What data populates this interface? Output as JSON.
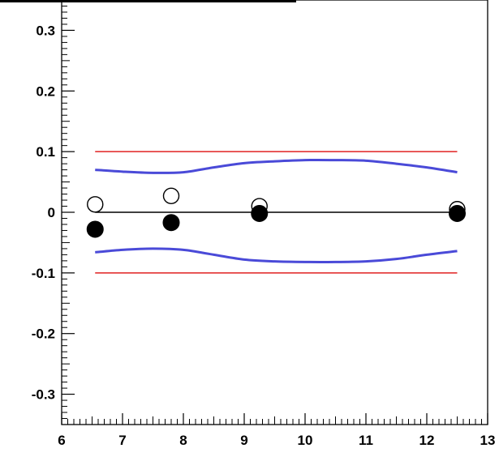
{
  "chart_data": {
    "type": "scatter",
    "title": "",
    "xlabel": "",
    "ylabel": "",
    "xlim": [
      6,
      13
    ],
    "ylim": [
      -0.35,
      0.35
    ],
    "grid": false,
    "x_ticks": [
      6,
      7,
      8,
      9,
      10,
      11,
      12,
      13
    ],
    "x_tick_labels": [
      "6",
      "7",
      "8",
      "9",
      "10",
      "11",
      "12",
      "13"
    ],
    "y_ticks": [
      0.3,
      0.2,
      0.1,
      0,
      -0.1,
      -0.2,
      -0.3
    ],
    "y_tick_labels": [
      "0.3",
      "0.2",
      "0.1",
      "0",
      "-0.1",
      "-0.2",
      "-0.3"
    ],
    "series": [
      {
        "marker": "open-circle",
        "color": "#000000",
        "x": [
          6.55,
          7.8,
          9.25,
          12.5
        ],
        "y": [
          0.013,
          0.027,
          0.01,
          0.005
        ]
      },
      {
        "marker": "filled-circle",
        "color": "#000000",
        "x": [
          6.55,
          7.8,
          9.25,
          12.5
        ],
        "y": [
          -0.028,
          -0.017,
          -0.002,
          -0.002
        ]
      },
      {
        "style": "line",
        "color": "#000000",
        "x": [
          6.55,
          12.5
        ],
        "y": [
          0,
          0
        ]
      },
      {
        "style": "line",
        "color": "#e02020",
        "x": [
          6.55,
          12.5
        ],
        "y": [
          0.1,
          0.1
        ]
      },
      {
        "style": "line",
        "color": "#e02020",
        "x": [
          6.55,
          12.5
        ],
        "y": [
          -0.1,
          -0.1
        ]
      },
      {
        "style": "curve",
        "color": "#4a4ad8",
        "x": [
          6.55,
          7.0,
          7.5,
          8.0,
          8.5,
          9.0,
          9.5,
          10.0,
          10.5,
          11.0,
          11.5,
          12.0,
          12.5
        ],
        "y": [
          0.07,
          0.067,
          0.065,
          0.066,
          0.074,
          0.081,
          0.084,
          0.086,
          0.086,
          0.085,
          0.08,
          0.074,
          0.066
        ]
      },
      {
        "style": "curve",
        "color": "#4a4ad8",
        "x": [
          6.55,
          7.0,
          7.5,
          8.0,
          8.5,
          9.0,
          9.5,
          10.0,
          10.5,
          11.0,
          11.5,
          12.0,
          12.5
        ],
        "y": [
          -0.066,
          -0.062,
          -0.06,
          -0.062,
          -0.07,
          -0.078,
          -0.081,
          -0.082,
          -0.082,
          -0.081,
          -0.077,
          -0.07,
          -0.064
        ]
      }
    ]
  }
}
